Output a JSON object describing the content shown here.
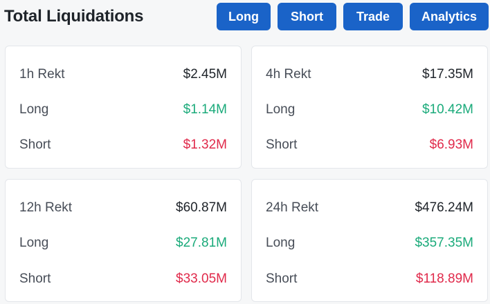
{
  "header": {
    "title": "Total Liquidations",
    "buttons": [
      "Long",
      "Short",
      "Trade",
      "Analytics"
    ]
  },
  "colors": {
    "accent": "#1a63c8",
    "long": "#1aaa7a",
    "short": "#e0294a"
  },
  "cards": [
    {
      "period_label": "1h Rekt",
      "total": "$2.45M",
      "long_label": "Long",
      "long": "$1.14M",
      "short_label": "Short",
      "short": "$1.32M"
    },
    {
      "period_label": "4h Rekt",
      "total": "$17.35M",
      "long_label": "Long",
      "long": "$10.42M",
      "short_label": "Short",
      "short": "$6.93M"
    },
    {
      "period_label": "12h Rekt",
      "total": "$60.87M",
      "long_label": "Long",
      "long": "$27.81M",
      "short_label": "Short",
      "short": "$33.05M"
    },
    {
      "period_label": "24h Rekt",
      "total": "$476.24M",
      "long_label": "Long",
      "long": "$357.35M",
      "short_label": "Short",
      "short": "$118.89M"
    }
  ]
}
